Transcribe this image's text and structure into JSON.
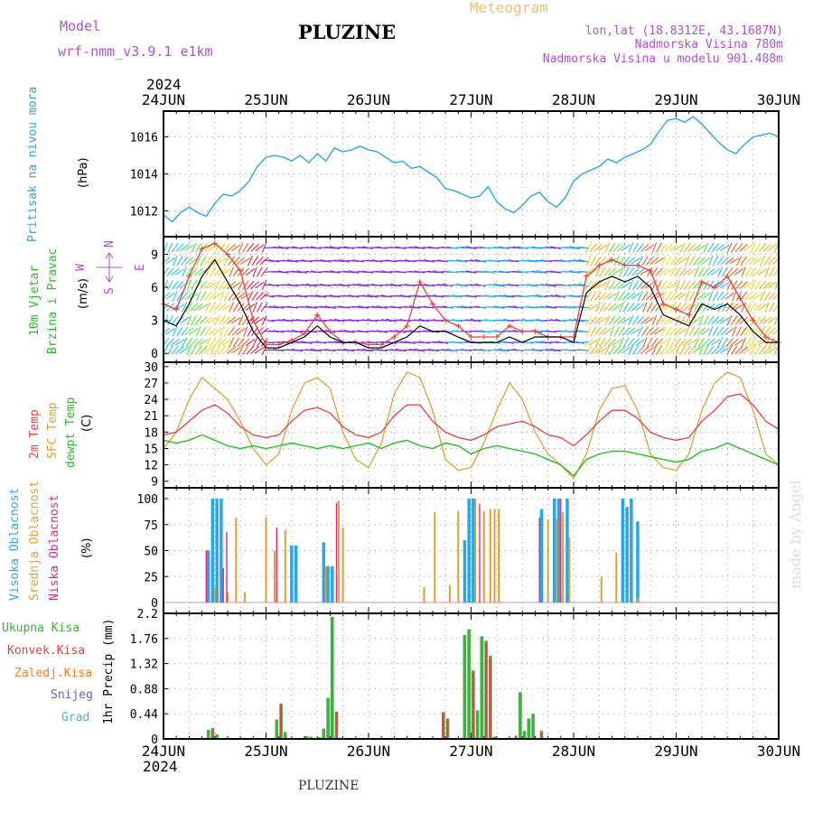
{
  "header": {
    "model_label": "Model",
    "model_value": "wrf-nmm_v3.9.1  e1km",
    "title": "PLUZINE",
    "meteogram_label": "Meteogram",
    "lonlat": "lon,lat (18.8312E, 43.1687N)",
    "elevation": "Nadmorska Visina 780m",
    "model_elevation": "Nadmorska Visina u modelu 901.488m"
  },
  "time_axis": {
    "year": "2024",
    "dates": [
      "24JUN",
      "25JUN",
      "26JUN",
      "27JUN",
      "28JUN",
      "29JUN",
      "30JUN"
    ]
  },
  "credit": "made by Angel",
  "footer": "PLUZINE",
  "colors": {
    "pressure": "#2aa6e6",
    "wind_speed": "#000000",
    "gust": "#e84040",
    "temp_2m": "#e84040",
    "temp_sfc": "#e0a030",
    "dewpoint": "#20c020",
    "cloud_high": "#2aa6e6",
    "cloud_mid": "#e0a030",
    "cloud_low": "#d82890",
    "precip_total": "#40b040",
    "precip_conv": "#e84040",
    "precip_frz": "#f08020",
    "precip_snow": "#6060e0",
    "precip_grad": "#30c0c0"
  },
  "chart_data": [
    {
      "type": "line",
      "panel": "pressure",
      "ylabel": "Pritisak na nivou mora",
      "unit": "(hPa)",
      "ylim": [
        1010.6,
        1017.4
      ],
      "yticks": [
        1012,
        1014,
        1016
      ],
      "series": [
        {
          "t": [
            0,
            2,
            4,
            6,
            8,
            10,
            12,
            14,
            16,
            18,
            20,
            22,
            24,
            26,
            28,
            30,
            32,
            34,
            36,
            38,
            40,
            42,
            44,
            46,
            48,
            50,
            52,
            54,
            56,
            58,
            60,
            62,
            64,
            66,
            68,
            70,
            72,
            74,
            76,
            78,
            80,
            82,
            84,
            86,
            88,
            90,
            92,
            94,
            96,
            98,
            100,
            102,
            104,
            106,
            108,
            110,
            112,
            114,
            116,
            118,
            120,
            122,
            124,
            126,
            128,
            130,
            132,
            134,
            136,
            138,
            140,
            142,
            144
          ],
          "values": [
            1011.8,
            1011.4,
            1011.9,
            1012.2,
            1011.9,
            1011.7,
            1012.4,
            1012.9,
            1012.8,
            1013.1,
            1013.6,
            1014.4,
            1014.9,
            1015.0,
            1014.9,
            1014.7,
            1015.0,
            1014.6,
            1015.1,
            1014.7,
            1015.4,
            1015.2,
            1015.3,
            1015.5,
            1015.3,
            1015.2,
            1014.9,
            1014.6,
            1014.7,
            1014.3,
            1014.4,
            1014.1,
            1013.8,
            1013.2,
            1013.1,
            1012.9,
            1012.7,
            1012.8,
            1013.3,
            1012.5,
            1012.1,
            1011.9,
            1012.3,
            1012.8,
            1013.0,
            1012.5,
            1012.2,
            1012.7,
            1013.6,
            1014.0,
            1014.2,
            1014.4,
            1014.8,
            1014.6,
            1014.9,
            1015.1,
            1015.3,
            1015.6,
            1016.3,
            1016.9,
            1017.0,
            1016.8,
            1017.1,
            1016.7,
            1016.2,
            1015.7,
            1015.3,
            1015.1,
            1015.6,
            1016.0,
            1016.1,
            1016.2,
            1016.0
          ]
        }
      ]
    },
    {
      "type": "line",
      "panel": "wind",
      "ylabel": "10m Vjetar",
      "ylabel2": "Brzina i Pravac",
      "unit": "(m/s)",
      "compass": [
        "N",
        "W",
        "E",
        "S"
      ],
      "ylim": [
        -0.8,
        10.6
      ],
      "yticks": [
        0,
        3,
        6,
        9
      ],
      "series": [
        {
          "name": "speed",
          "t": [
            0,
            3,
            6,
            9,
            12,
            15,
            18,
            21,
            24,
            27,
            30,
            33,
            36,
            39,
            42,
            45,
            48,
            51,
            54,
            57,
            60,
            63,
            66,
            69,
            72,
            75,
            78,
            81,
            84,
            87,
            90,
            93,
            96,
            99,
            102,
            105,
            108,
            111,
            114,
            117,
            120,
            123,
            126,
            129,
            132,
            135,
            138,
            141,
            144
          ],
          "values": [
            3.0,
            2.5,
            4.5,
            7.0,
            8.5,
            6.5,
            4.5,
            2.0,
            0.5,
            0.5,
            1.0,
            1.5,
            2.5,
            1.5,
            1.0,
            1.0,
            0.5,
            0.5,
            1.0,
            1.5,
            2.5,
            2.0,
            2.0,
            1.5,
            1.0,
            1.0,
            1.0,
            1.5,
            1.0,
            1.5,
            1.5,
            1.5,
            1.0,
            5.5,
            6.5,
            7.0,
            6.5,
            7.0,
            6.0,
            3.5,
            3.0,
            2.5,
            4.5,
            4.0,
            4.5,
            3.5,
            2.0,
            1.0,
            1.0
          ]
        },
        {
          "name": "gust",
          "t": [
            0,
            3,
            6,
            9,
            12,
            15,
            18,
            21,
            24,
            27,
            30,
            33,
            36,
            39,
            42,
            45,
            48,
            51,
            54,
            57,
            60,
            63,
            66,
            69,
            72,
            75,
            78,
            81,
            84,
            87,
            90,
            93,
            96,
            99,
            102,
            105,
            108,
            111,
            114,
            117,
            120,
            123,
            126,
            129,
            132,
            135,
            138,
            141,
            144
          ],
          "values": [
            4.5,
            4.0,
            7.0,
            9.5,
            10.0,
            9.0,
            7.5,
            3.0,
            0.8,
            0.8,
            1.2,
            1.8,
            3.5,
            2.0,
            1.0,
            1.0,
            0.8,
            0.8,
            1.5,
            2.5,
            6.5,
            4.5,
            3.0,
            2.5,
            1.5,
            1.5,
            1.5,
            2.5,
            2.0,
            2.0,
            1.5,
            1.5,
            1.5,
            7.0,
            8.0,
            8.5,
            8.0,
            8.0,
            7.5,
            4.5,
            4.0,
            3.5,
            6.5,
            6.0,
            7.0,
            5.0,
            3.0,
            1.5,
            1.0
          ]
        }
      ]
    },
    {
      "type": "line",
      "panel": "temperature",
      "ylabel": "2m Temp",
      "ylabel2": "SFC Temp",
      "ylabel3": "dewpt Temp",
      "unit": "(C)",
      "ylim": [
        7.8,
        30.8
      ],
      "yticks": [
        9,
        12,
        15,
        18,
        21,
        24,
        27,
        30
      ],
      "series": [
        {
          "name": "2m Temp",
          "t": [
            0,
            3,
            6,
            9,
            12,
            15,
            18,
            21,
            24,
            27,
            30,
            33,
            36,
            39,
            42,
            45,
            48,
            51,
            54,
            57,
            60,
            63,
            66,
            69,
            72,
            75,
            78,
            81,
            84,
            87,
            90,
            93,
            96,
            99,
            102,
            105,
            108,
            111,
            114,
            117,
            120,
            123,
            126,
            129,
            132,
            135,
            138,
            141,
            144
          ],
          "values": [
            17.5,
            18.0,
            20.0,
            22.0,
            23.0,
            21.5,
            19.0,
            17.5,
            17.0,
            17.5,
            20.0,
            22.0,
            22.5,
            21.5,
            19.0,
            17.5,
            17.0,
            18.0,
            21.0,
            23.0,
            23.0,
            20.0,
            18.0,
            17.0,
            16.5,
            17.5,
            19.0,
            19.5,
            20.0,
            19.0,
            17.5,
            17.0,
            15.5,
            17.5,
            20.0,
            22.0,
            22.0,
            20.5,
            18.0,
            17.0,
            16.5,
            17.0,
            20.0,
            22.0,
            24.5,
            25.0,
            23.0,
            20.0,
            18.5
          ]
        },
        {
          "name": "SFC Temp",
          "t": [
            0,
            3,
            6,
            9,
            12,
            15,
            18,
            21,
            24,
            27,
            30,
            33,
            36,
            39,
            42,
            45,
            48,
            51,
            54,
            57,
            60,
            63,
            66,
            69,
            72,
            75,
            78,
            81,
            84,
            87,
            90,
            93,
            96,
            99,
            102,
            105,
            108,
            111,
            114,
            117,
            120,
            123,
            126,
            129,
            132,
            135,
            138,
            141,
            144
          ],
          "values": [
            15.0,
            18.0,
            24.0,
            28.0,
            26.0,
            24.0,
            20.0,
            15.0,
            12.0,
            14.0,
            22.0,
            27.0,
            28.0,
            26.0,
            18.0,
            13.0,
            11.5,
            16.0,
            25.0,
            29.0,
            28.0,
            22.0,
            13.0,
            11.0,
            11.5,
            16.0,
            22.0,
            27.0,
            24.0,
            18.0,
            14.0,
            12.0,
            9.5,
            14.0,
            22.0,
            26.0,
            26.5,
            22.0,
            14.0,
            11.5,
            11.0,
            14.0,
            22.0,
            27.0,
            29.0,
            28.0,
            22.0,
            14.0,
            12.0
          ]
        },
        {
          "name": "dewpt Temp",
          "t": [
            0,
            3,
            6,
            9,
            12,
            15,
            18,
            21,
            24,
            27,
            30,
            33,
            36,
            39,
            42,
            45,
            48,
            51,
            54,
            57,
            60,
            63,
            66,
            69,
            72,
            75,
            78,
            81,
            84,
            87,
            90,
            93,
            96,
            99,
            102,
            105,
            108,
            111,
            114,
            117,
            120,
            123,
            126,
            129,
            132,
            135,
            138,
            141,
            144
          ],
          "values": [
            16.5,
            16.0,
            16.5,
            17.5,
            16.5,
            15.5,
            15.0,
            15.5,
            15.0,
            15.5,
            16.0,
            15.5,
            15.0,
            15.5,
            15.0,
            15.5,
            16.0,
            15.0,
            16.0,
            16.5,
            15.5,
            15.0,
            16.0,
            15.5,
            14.0,
            15.0,
            15.5,
            15.0,
            14.5,
            14.0,
            13.0,
            12.0,
            10.0,
            13.0,
            14.0,
            14.5,
            14.5,
            14.0,
            13.5,
            13.0,
            12.5,
            13.0,
            14.5,
            15.0,
            16.0,
            15.0,
            14.0,
            13.0,
            12.0
          ]
        }
      ]
    },
    {
      "type": "bar",
      "panel": "clouds",
      "ylabel": "Visoka Oblacnost",
      "ylabel2": "Srednja Oblacnost",
      "ylabel3": "Niska Oblacnost",
      "unit": "(%)",
      "ylim": [
        0,
        100
      ],
      "yticks": [
        0,
        25,
        50,
        75,
        100
      ],
      "series": [
        {
          "name": "Visoka Oblacnost",
          "t": [
            10.5,
            11.5,
            12.5,
            13.5,
            30,
            31,
            37.5,
            38.5,
            39.5,
            70.5,
            71.5,
            72.5,
            88.5,
            91.5,
            92.5,
            94.5,
            107.5,
            108.5,
            109.5,
            111
          ],
          "values": [
            50,
            100,
            100,
            100,
            55,
            55,
            58,
            35,
            35,
            60,
            100,
            100,
            90,
            100,
            100,
            100,
            100,
            92,
            100,
            78
          ]
        },
        {
          "name": "Srednja Oblacnost",
          "t": [
            12,
            15,
            17,
            19,
            24,
            26,
            28.5,
            38,
            41,
            42,
            61,
            63.5,
            67,
            69,
            73,
            75,
            76.5,
            77.5,
            78.5,
            90,
            92,
            93.5,
            95,
            102.5,
            106,
            111
          ],
          "values": [
            15,
            10,
            82,
            10,
            82,
            50,
            70,
            35,
            98,
            72,
            15,
            87,
            17,
            88,
            100,
            88,
            90,
            90,
            90,
            80,
            80,
            87,
            63,
            25,
            48,
            5
          ]
        },
        {
          "name": "Niska Oblacnost",
          "t": [
            10,
            14,
            14.8,
            26.5,
            40.5,
            74,
            88,
            93
          ],
          "values": [
            50,
            33,
            68,
            72,
            96,
            95,
            82,
            100
          ]
        }
      ]
    },
    {
      "type": "bar",
      "panel": "precip",
      "ylabel": "1hr Precip (mm)",
      "series_labels": [
        "Ukupna Kisa",
        "Konvek.Kisa",
        "Zaledj.Kisa",
        "Snijeg",
        "Grad"
      ],
      "ylim": [
        0,
        2.2
      ],
      "yticks": [
        0,
        0.44,
        0.88,
        1.32,
        1.76,
        2.2
      ],
      "series": [
        {
          "name": "Ukupna Kisa",
          "t": [
            10.5,
            11.5,
            12.5,
            26.5,
            27.5,
            28.5,
            33.5,
            34.5,
            36.5,
            37.5,
            38.5,
            39.5,
            40.5,
            41.5,
            65.5,
            66.5,
            70.5,
            71.5,
            72.5,
            73.5,
            74.5,
            75.5,
            76.5,
            77.5,
            82.5,
            83.5,
            84.5,
            85.5,
            86.5,
            88.5
          ],
          "values": [
            0.16,
            0.19,
            0.08,
            0.34,
            0.62,
            0.12,
            0.05,
            0.04,
            0.03,
            0.18,
            0.72,
            2.14,
            0.48,
            0.02,
            0.47,
            0.36,
            1.82,
            1.92,
            1.2,
            0.5,
            1.8,
            1.72,
            1.46,
            0.04,
            0.04,
            0.82,
            0.14,
            0.36,
            0.44,
            0.14
          ]
        },
        {
          "name": "Konvek.Kisa",
          "t": [
            11.5,
            27.5,
            40.5,
            65.5,
            66.5,
            72.5,
            75.5,
            76.5,
            82.5,
            88.5
          ],
          "values": [
            0.16,
            0.6,
            0.46,
            0.46,
            0.34,
            1.16,
            1.68,
            1.4,
            0.06,
            0.12
          ]
        }
      ]
    }
  ]
}
